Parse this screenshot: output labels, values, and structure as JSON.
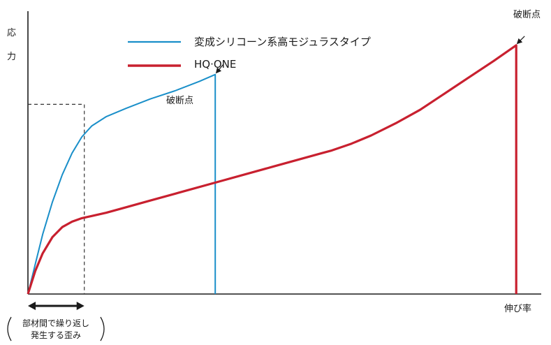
{
  "chart_data": {
    "type": "line",
    "ylabel_chars": [
      "応",
      "力"
    ],
    "xlabel": "伸び率",
    "xlim": [
      0,
      100
    ],
    "ylim": [
      0,
      100
    ],
    "series": [
      {
        "name": "変成シリコーン系高モジュラスタイプ",
        "color": "#1a8fc9",
        "x": [
          0,
          1.5,
          3,
          5,
          7,
          9,
          11,
          13,
          16,
          20,
          25,
          30,
          35,
          38.2
        ],
        "y": [
          0,
          11,
          22,
          34,
          44,
          52,
          58,
          62,
          65.5,
          68.5,
          72,
          75,
          78.5,
          81
        ]
      },
      {
        "name": "HQ·ONE",
        "color": "#c8202f",
        "x": [
          0,
          1.5,
          3,
          5,
          7,
          9,
          11,
          13,
          16,
          20,
          25,
          30,
          40,
          50,
          60,
          62,
          66,
          70,
          75,
          80,
          85,
          90,
          95,
          99.6
        ],
        "y": [
          0,
          8.5,
          15,
          21,
          24.7,
          26.7,
          28,
          28.8,
          30,
          32,
          34.5,
          37,
          42,
          47,
          52,
          53,
          55.5,
          58.5,
          63,
          68,
          74,
          80,
          86,
          91.8
        ]
      }
    ],
    "break_points": [
      {
        "label": "破断点",
        "x": 38.2,
        "y": 81
      },
      {
        "label": "破断点",
        "x": 99.6,
        "y": 91.8
      }
    ],
    "reference_x": 11.5,
    "reference_y": 70,
    "arrow_range": [
      0,
      11.5
    ],
    "annotation": [
      "部材間で繰り返し",
      "発生する歪み"
    ],
    "grid": false,
    "legend": "top-center"
  }
}
